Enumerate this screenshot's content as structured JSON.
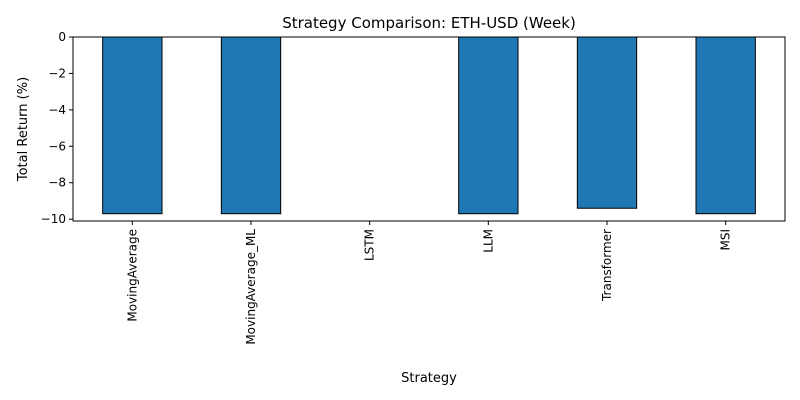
{
  "chart_data": {
    "type": "bar",
    "title": "Strategy Comparison: ETH-USD (Week)",
    "xlabel": "Strategy",
    "ylabel": "Total Return (%)",
    "categories": [
      "MovingAverage",
      "MovingAverage_ML",
      "LSTM",
      "LLM",
      "Transformer",
      "MSI"
    ],
    "values": [
      -9.7,
      -9.7,
      0.0,
      -9.7,
      -9.4,
      -9.7
    ],
    "ylim": [
      -10.1,
      0
    ],
    "yticks": [
      0,
      -2,
      -4,
      -6,
      -8,
      -10
    ],
    "ytick_labels": [
      "0",
      "−2",
      "−4",
      "−6",
      "−8",
      "−10"
    ],
    "bar_color": "#1f77b4",
    "edge_color": "#000000",
    "grid": false,
    "legend": "none"
  }
}
